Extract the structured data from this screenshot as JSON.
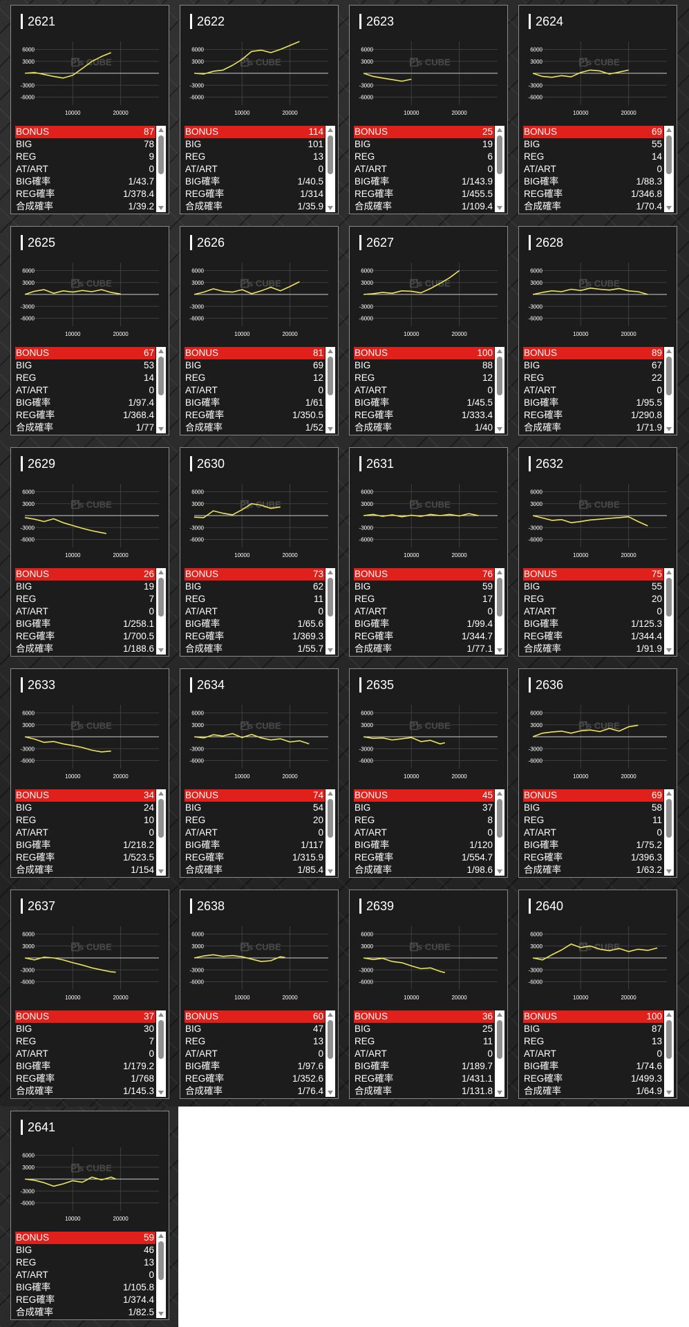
{
  "labels": {
    "bonus": "BONUS",
    "big": "BIG",
    "reg": "REG",
    "at": "AT/ART",
    "big_rate": "BIG確率",
    "reg_rate": "REG確率",
    "total_rate": "合成確率"
  },
  "chart_axes": {
    "y_ticks": [
      "6000",
      "3000",
      "-3000",
      "-6000"
    ],
    "x_ticks": [
      "10000",
      "20000"
    ],
    "watermark": "P's CUBE",
    "line_color": "#f0e55a"
  },
  "colors": {
    "bonus_bg": "#e0211b",
    "card_bg": "#1c1c1c",
    "line": "#f0e55a"
  },
  "icons": {
    "scroll_up": "triangle-up-icon",
    "scroll_down": "triangle-down-icon"
  },
  "machines": [
    {
      "id": "2621",
      "bonus": "87",
      "big": "78",
      "reg": "9",
      "at": "0",
      "big_rate": "1/43.7",
      "reg_rate": "1/378.4",
      "total_rate": "1/39.2",
      "chart_data": {
        "type": "line",
        "x": [
          0,
          2000,
          4000,
          6000,
          8000,
          10000,
          12000,
          14000,
          16000,
          18000
        ],
        "y": [
          0,
          200,
          -300,
          -800,
          -1200,
          -500,
          1200,
          3000,
          4200,
          5200
        ]
      }
    },
    {
      "id": "2622",
      "bonus": "114",
      "big": "101",
      "reg": "13",
      "at": "0",
      "big_rate": "1/40.5",
      "reg_rate": "1/314",
      "total_rate": "1/35.9",
      "chart_data": {
        "type": "line",
        "x": [
          0,
          2000,
          4000,
          6000,
          8000,
          10000,
          12000,
          14000,
          16000,
          18000,
          20000,
          22000
        ],
        "y": [
          0,
          -200,
          500,
          800,
          2000,
          3500,
          5500,
          5800,
          5200,
          6000,
          7000,
          8000
        ]
      }
    },
    {
      "id": "2623",
      "bonus": "25",
      "big": "19",
      "reg": "6",
      "at": "0",
      "big_rate": "1/143.9",
      "reg_rate": "1/455.5",
      "total_rate": "1/109.4",
      "chart_data": {
        "type": "line",
        "x": [
          0,
          2000,
          4000,
          6000,
          8000,
          10000
        ],
        "y": [
          0,
          -800,
          -1200,
          -1600,
          -2000,
          -1500
        ]
      }
    },
    {
      "id": "2624",
      "bonus": "69",
      "big": "55",
      "reg": "14",
      "at": "0",
      "big_rate": "1/88.3",
      "reg_rate": "1/346.8",
      "total_rate": "1/70.4",
      "chart_data": {
        "type": "line",
        "x": [
          0,
          2000,
          4000,
          6000,
          8000,
          10000,
          12000,
          14000,
          16000,
          18000,
          20000
        ],
        "y": [
          0,
          -800,
          -1000,
          -600,
          -900,
          200,
          800,
          600,
          -200,
          300,
          800
        ]
      }
    },
    {
      "id": "2625",
      "bonus": "67",
      "big": "53",
      "reg": "14",
      "at": "0",
      "big_rate": "1/97.4",
      "reg_rate": "1/368.4",
      "total_rate": "1/77",
      "chart_data": {
        "type": "line",
        "x": [
          0,
          2000,
          4000,
          6000,
          8000,
          10000,
          12000,
          14000,
          16000,
          18000,
          20000
        ],
        "y": [
          0,
          800,
          1200,
          300,
          900,
          600,
          1000,
          700,
          1200,
          500,
          100
        ]
      }
    },
    {
      "id": "2626",
      "bonus": "81",
      "big": "69",
      "reg": "12",
      "at": "0",
      "big_rate": "1/61",
      "reg_rate": "1/350.5",
      "total_rate": "1/52",
      "chart_data": {
        "type": "line",
        "x": [
          0,
          2000,
          4000,
          6000,
          8000,
          10000,
          12000,
          14000,
          16000,
          18000,
          20000,
          22000
        ],
        "y": [
          0,
          600,
          1400,
          800,
          600,
          1200,
          200,
          900,
          1800,
          900,
          2000,
          3200
        ]
      }
    },
    {
      "id": "2627",
      "bonus": "100",
      "big": "88",
      "reg": "12",
      "at": "0",
      "big_rate": "1/45.5",
      "reg_rate": "1/333.4",
      "total_rate": "1/40",
      "chart_data": {
        "type": "line",
        "x": [
          0,
          2000,
          4000,
          6000,
          8000,
          10000,
          12000,
          14000,
          16000,
          18000,
          20000
        ],
        "y": [
          0,
          200,
          500,
          300,
          900,
          800,
          400,
          1500,
          2800,
          4200,
          6000
        ]
      }
    },
    {
      "id": "2628",
      "bonus": "89",
      "big": "67",
      "reg": "22",
      "at": "0",
      "big_rate": "1/95.5",
      "reg_rate": "1/290.8",
      "total_rate": "1/71.9",
      "chart_data": {
        "type": "line",
        "x": [
          0,
          2000,
          4000,
          6000,
          8000,
          10000,
          12000,
          14000,
          16000,
          18000,
          20000,
          22000,
          24000
        ],
        "y": [
          0,
          500,
          900,
          700,
          1300,
          1000,
          1600,
          1300,
          1100,
          1500,
          900,
          700,
          0
        ]
      }
    },
    {
      "id": "2629",
      "bonus": "26",
      "big": "19",
      "reg": "7",
      "at": "0",
      "big_rate": "1/258.1",
      "reg_rate": "1/700.5",
      "total_rate": "1/188.6",
      "chart_data": {
        "type": "line",
        "x": [
          0,
          2000,
          4000,
          6000,
          8000,
          10000,
          12000,
          14000,
          16000,
          17000
        ],
        "y": [
          -500,
          -900,
          -1500,
          -800,
          -1800,
          -2500,
          -3200,
          -3800,
          -4300,
          -4500
        ]
      }
    },
    {
      "id": "2630",
      "bonus": "73",
      "big": "62",
      "reg": "11",
      "at": "0",
      "big_rate": "1/65.6",
      "reg_rate": "1/369.3",
      "total_rate": "1/55.7",
      "chart_data": {
        "type": "line",
        "x": [
          0,
          2000,
          4000,
          6000,
          8000,
          10000,
          12000,
          14000,
          16000,
          18000
        ],
        "y": [
          -400,
          -500,
          1200,
          600,
          200,
          1500,
          3000,
          2600,
          1800,
          2200
        ]
      }
    },
    {
      "id": "2631",
      "bonus": "76",
      "big": "59",
      "reg": "17",
      "at": "0",
      "big_rate": "1/99.4",
      "reg_rate": "1/344.7",
      "total_rate": "1/77.1",
      "chart_data": {
        "type": "line",
        "x": [
          0,
          2000,
          4000,
          6000,
          8000,
          10000,
          12000,
          14000,
          16000,
          18000,
          20000,
          22000,
          24000
        ],
        "y": [
          0,
          300,
          -200,
          200,
          -300,
          100,
          -200,
          300,
          0,
          300,
          -100,
          500,
          0
        ]
      }
    },
    {
      "id": "2632",
      "bonus": "75",
      "big": "55",
      "reg": "20",
      "at": "0",
      "big_rate": "1/125.3",
      "reg_rate": "1/344.4",
      "total_rate": "1/91.9",
      "chart_data": {
        "type": "line",
        "x": [
          0,
          2000,
          4000,
          6000,
          8000,
          10000,
          12000,
          14000,
          16000,
          18000,
          20000,
          22000,
          24000
        ],
        "y": [
          0,
          -600,
          -1200,
          -1000,
          -1800,
          -1500,
          -1100,
          -900,
          -700,
          -500,
          -300,
          -1500,
          -2600
        ]
      }
    },
    {
      "id": "2633",
      "bonus": "34",
      "big": "24",
      "reg": "10",
      "at": "0",
      "big_rate": "1/218.2",
      "reg_rate": "1/523.5",
      "total_rate": "1/154",
      "chart_data": {
        "type": "line",
        "x": [
          0,
          2000,
          4000,
          6000,
          8000,
          10000,
          12000,
          14000,
          16000,
          18000
        ],
        "y": [
          0,
          -600,
          -1400,
          -1200,
          -1800,
          -2200,
          -2700,
          -3400,
          -3800,
          -3600
        ]
      }
    },
    {
      "id": "2634",
      "bonus": "74",
      "big": "54",
      "reg": "20",
      "at": "0",
      "big_rate": "1/117",
      "reg_rate": "1/315.9",
      "total_rate": "1/85.4",
      "chart_data": {
        "type": "line",
        "x": [
          0,
          2000,
          4000,
          6000,
          8000,
          10000,
          12000,
          14000,
          16000,
          18000,
          20000,
          22000,
          24000
        ],
        "y": [
          0,
          -300,
          500,
          200,
          800,
          -200,
          600,
          -300,
          -800,
          -500,
          -1300,
          -1000,
          -1800
        ]
      }
    },
    {
      "id": "2635",
      "bonus": "45",
      "big": "37",
      "reg": "8",
      "at": "0",
      "big_rate": "1/120",
      "reg_rate": "1/554.7",
      "total_rate": "1/98.6",
      "chart_data": {
        "type": "line",
        "x": [
          0,
          2000,
          4000,
          6000,
          8000,
          10000,
          12000,
          14000,
          16000,
          17000
        ],
        "y": [
          0,
          -400,
          -300,
          -800,
          -500,
          -200,
          -1200,
          -900,
          -1800,
          -1500
        ]
      }
    },
    {
      "id": "2636",
      "bonus": "69",
      "big": "58",
      "reg": "11",
      "at": "0",
      "big_rate": "1/75.2",
      "reg_rate": "1/396.3",
      "total_rate": "1/63.2",
      "chart_data": {
        "type": "line",
        "x": [
          0,
          2000,
          4000,
          6000,
          8000,
          10000,
          12000,
          14000,
          16000,
          18000,
          20000,
          22000
        ],
        "y": [
          0,
          900,
          1200,
          1400,
          900,
          1500,
          1700,
          1300,
          2100,
          1400,
          2500,
          2900
        ]
      }
    },
    {
      "id": "2637",
      "bonus": "37",
      "big": "30",
      "reg": "7",
      "at": "0",
      "big_rate": "1/179.2",
      "reg_rate": "1/768",
      "total_rate": "1/145.3",
      "chart_data": {
        "type": "line",
        "x": [
          0,
          2000,
          4000,
          6000,
          8000,
          10000,
          12000,
          14000,
          16000,
          18000,
          19000
        ],
        "y": [
          0,
          -500,
          200,
          0,
          -500,
          -1200,
          -1800,
          -2500,
          -3000,
          -3500,
          -3600
        ]
      }
    },
    {
      "id": "2638",
      "bonus": "60",
      "big": "47",
      "reg": "13",
      "at": "0",
      "big_rate": "1/97.6",
      "reg_rate": "1/352.6",
      "total_rate": "1/76.4",
      "chart_data": {
        "type": "line",
        "x": [
          0,
          2000,
          4000,
          6000,
          8000,
          10000,
          12000,
          14000,
          16000,
          18000,
          19000
        ],
        "y": [
          0,
          500,
          800,
          400,
          600,
          300,
          -300,
          -900,
          -700,
          300,
          100
        ]
      }
    },
    {
      "id": "2639",
      "bonus": "36",
      "big": "25",
      "reg": "11",
      "at": "0",
      "big_rate": "1/189.7",
      "reg_rate": "1/431.1",
      "total_rate": "1/131.8",
      "chart_data": {
        "type": "line",
        "x": [
          0,
          2000,
          4000,
          6000,
          8000,
          10000,
          12000,
          14000,
          16000,
          17000
        ],
        "y": [
          0,
          -400,
          -100,
          -900,
          -1200,
          -2000,
          -2700,
          -2500,
          -3400,
          -3700
        ]
      }
    },
    {
      "id": "2640",
      "bonus": "100",
      "big": "87",
      "reg": "13",
      "at": "0",
      "big_rate": "1/74.6",
      "reg_rate": "1/499.3",
      "total_rate": "1/64.9",
      "chart_data": {
        "type": "line",
        "x": [
          0,
          2000,
          4000,
          6000,
          8000,
          10000,
          12000,
          14000,
          16000,
          18000,
          20000,
          22000,
          24000,
          26000
        ],
        "y": [
          0,
          -500,
          800,
          2000,
          3500,
          2600,
          3000,
          2200,
          1800,
          2400,
          1600,
          2200,
          1900,
          2500
        ]
      }
    },
    {
      "id": "2641",
      "bonus": "59",
      "big": "46",
      "reg": "13",
      "at": "0",
      "big_rate": "1/105.8",
      "reg_rate": "1/374.4",
      "total_rate": "1/82.5",
      "chart_data": {
        "type": "line",
        "x": [
          0,
          2000,
          4000,
          6000,
          8000,
          10000,
          12000,
          14000,
          16000,
          18000,
          19000
        ],
        "y": [
          0,
          -300,
          -900,
          -1800,
          -1200,
          -400,
          -800,
          500,
          -200,
          500,
          0
        ]
      }
    }
  ]
}
